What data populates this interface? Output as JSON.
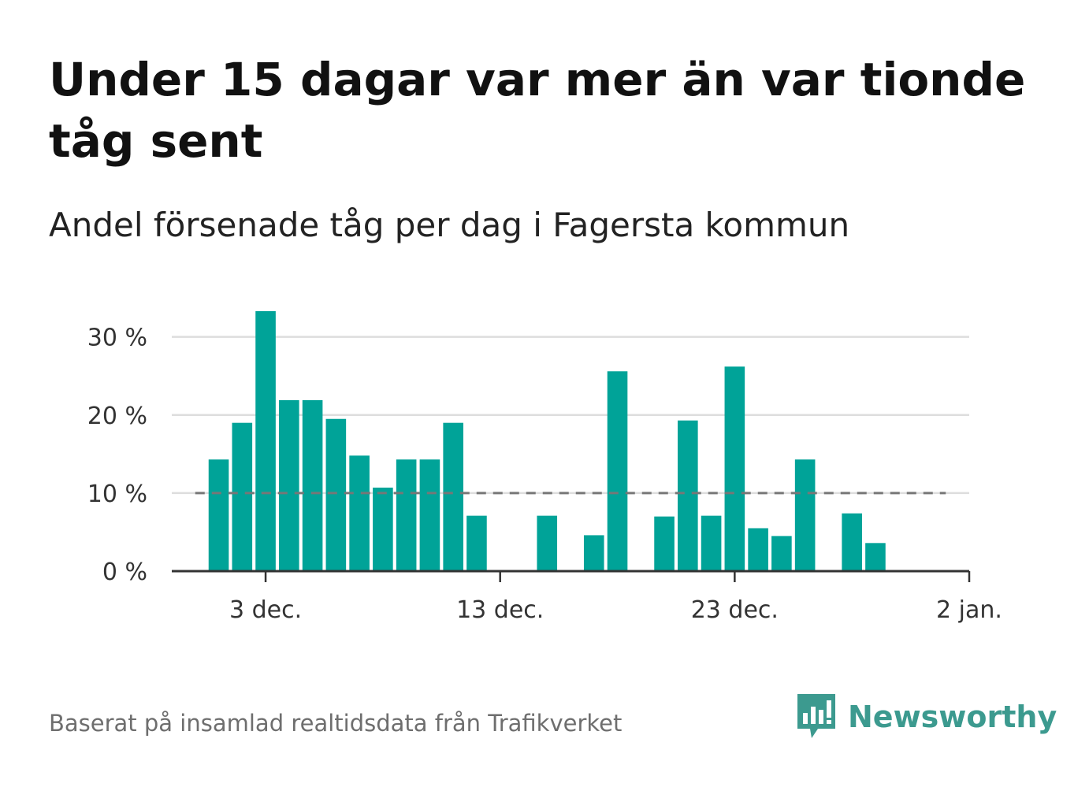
{
  "title": "Under 15 dagar var mer än var tionde tåg sent",
  "subtitle": "Andel försenade tåg per dag i Fagersta kommun",
  "footer": {
    "source": "Baserat på insamlad realtidsdata från Trafikverket",
    "brand": "Newsworthy"
  },
  "colors": {
    "bar": "#00a398",
    "grid": "#dddddd",
    "axis": "#333333",
    "reference_line": "#777777",
    "brand": "#3c9a8f"
  },
  "icons": {
    "brand_logo": "newsworthy-logo-icon"
  },
  "chart_data": {
    "type": "bar",
    "title": "Under 15 dagar var mer än var tionde tåg sent",
    "subtitle": "Andel försenade tåg per dag i Fagersta kommun",
    "xlabel": "",
    "ylabel": "",
    "x_unit": "day",
    "x_range": [
      "2023-11-29",
      "2024-01-02"
    ],
    "x_ticks": [
      {
        "date": "2023-12-03",
        "label": "3 dec."
      },
      {
        "date": "2023-12-13",
        "label": "13 dec."
      },
      {
        "date": "2023-12-23",
        "label": "23 dec."
      },
      {
        "date": "2024-01-02",
        "label": "2 jan."
      }
    ],
    "ylim": [
      0,
      33.5
    ],
    "y_ticks": [
      {
        "value": 0,
        "label": "0 %"
      },
      {
        "value": 10,
        "label": "10 %"
      },
      {
        "value": 20,
        "label": "20 %"
      },
      {
        "value": 30,
        "label": "30 %"
      }
    ],
    "grid": true,
    "reference_line": {
      "value": 10,
      "style": "dashed",
      "x_range": [
        "2023-11-30",
        "2024-01-01"
      ]
    },
    "series": [
      {
        "dates": [
          "2023-12-01",
          "2023-12-02",
          "2023-12-03",
          "2023-12-04",
          "2023-12-05",
          "2023-12-06",
          "2023-12-07",
          "2023-12-08",
          "2023-12-09",
          "2023-12-10",
          "2023-12-11",
          "2023-12-12",
          "2023-12-13",
          "2023-12-14",
          "2023-12-15",
          "2023-12-16",
          "2023-12-17",
          "2023-12-18",
          "2023-12-19",
          "2023-12-20",
          "2023-12-21",
          "2023-12-22",
          "2023-12-23",
          "2023-12-24",
          "2023-12-25",
          "2023-12-26",
          "2023-12-27",
          "2023-12-28",
          "2023-12-29",
          "2023-12-30"
        ],
        "values": [
          14.3,
          19.0,
          33.3,
          21.9,
          21.9,
          19.5,
          14.8,
          10.7,
          14.3,
          14.3,
          19.0,
          7.1,
          0,
          0,
          7.1,
          0,
          4.6,
          25.6,
          0,
          7.0,
          19.3,
          7.1,
          26.2,
          5.5,
          4.5,
          14.3,
          0,
          7.4,
          3.6,
          0
        ]
      }
    ]
  }
}
